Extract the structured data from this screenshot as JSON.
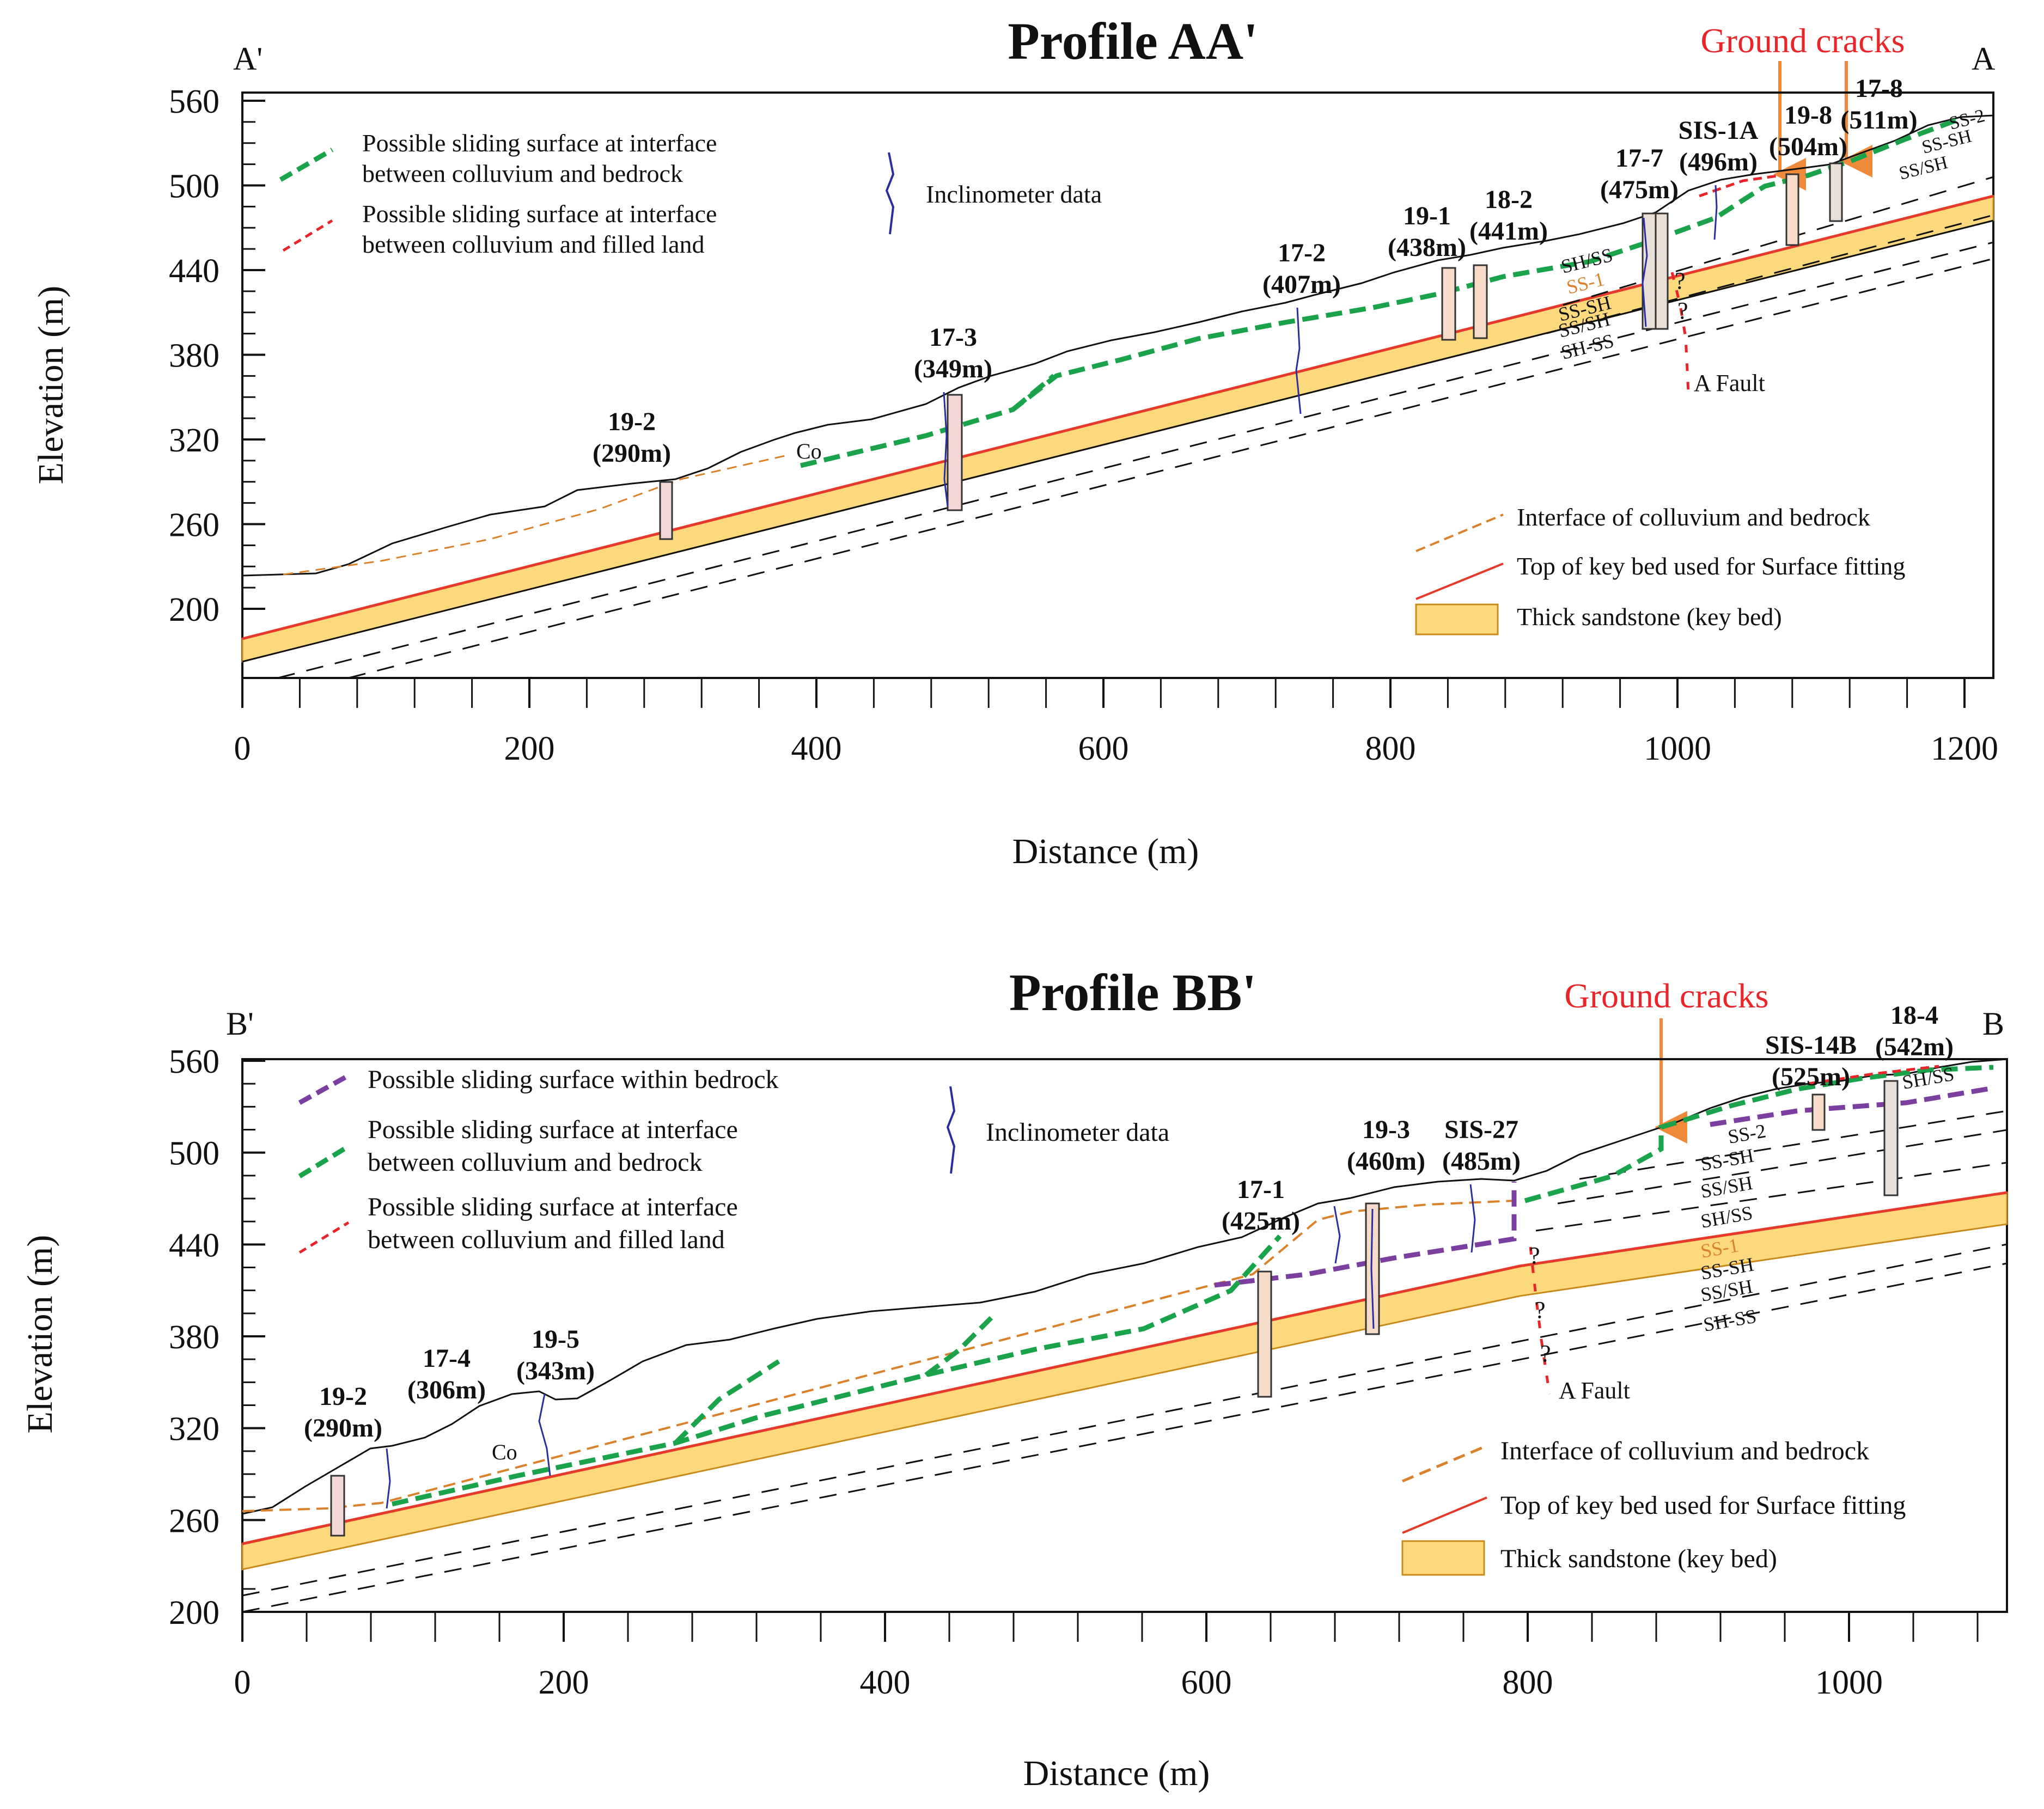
{
  "colors": {
    "green": "#1aa34a",
    "red_dash": "#e8262a",
    "orange_dash": "#d9822b",
    "purple": "#7b3fa0",
    "keybed_fill": "#fbd97c",
    "keybed_top": "#e53a2b",
    "inclinometer": "#2b2f9e",
    "crack_title": "#e8262a",
    "crack_arrow": "#f08a3a"
  },
  "profile_a": {
    "title": "Profile AA'",
    "left_end": "A'",
    "right_end": "A",
    "ground_cracks": "Ground cracks",
    "x_label": "Distance (m)",
    "y_label": "Elevation (m)",
    "x_ticks": [
      "0",
      "200",
      "400",
      "600",
      "800",
      "1000",
      "1200"
    ],
    "y_ticks": [
      "560",
      "500",
      "440",
      "380",
      "320",
      "260",
      "200"
    ],
    "legend_top": {
      "green": [
        "Possible sliding surface at interface",
        "between colluvium and bedrock"
      ],
      "red": [
        "Possible sliding surface at interface",
        "between colluvium and filled land"
      ],
      "incl": "Inclinometer data"
    },
    "legend_bottom": {
      "orange": "Interface of colluvium and bedrock",
      "red": "Top of key bed used for Surface fitting",
      "keybed": "Thick sandstone (key bed)"
    },
    "boreholes": [
      {
        "id": "19-2",
        "elev": "(290m)"
      },
      {
        "id": "17-3",
        "elev": "(349m)"
      },
      {
        "id": "17-2",
        "elev": "(407m)"
      },
      {
        "id": "19-1",
        "elev": "(438m)"
      },
      {
        "id": "18-2",
        "elev": "(441m)"
      },
      {
        "id": "17-7",
        "elev": "(475m)"
      },
      {
        "id": "SIS-1A",
        "elev": "(496m)"
      },
      {
        "id": "19-8",
        "elev": "(504m)"
      },
      {
        "id": "17-8",
        "elev": "(511m)"
      }
    ],
    "layers": [
      "SH/SS",
      "SS-1",
      "SS-SH",
      "SS/SH",
      "SH-SS",
      "SS-2",
      "SS-SH",
      "SS/SH"
    ],
    "co": "Co",
    "fault": "A Fault",
    "q": "?"
  },
  "profile_b": {
    "title": "Profile BB'",
    "left_end": "B'",
    "right_end": "B",
    "ground_cracks": "Ground cracks",
    "x_label": "Distance (m)",
    "y_label": "Elevation (m)",
    "x_ticks": [
      "0",
      "200",
      "400",
      "600",
      "800",
      "1000"
    ],
    "y_ticks": [
      "560",
      "500",
      "440",
      "380",
      "320",
      "260",
      "200"
    ],
    "legend_top": {
      "purple": "Possible sliding surface within bedrock",
      "green": [
        "Possible sliding surface at interface",
        "between colluvium and bedrock"
      ],
      "red": [
        "Possible sliding surface at interface",
        "between colluvium and filled land"
      ],
      "incl": "Inclinometer data"
    },
    "legend_bottom": {
      "orange": "Interface of colluvium and bedrock",
      "red": "Top of key bed used for Surface fitting",
      "keybed": "Thick sandstone (key bed)"
    },
    "boreholes": [
      {
        "id": "19-2",
        "elev": "(290m)"
      },
      {
        "id": "17-4",
        "elev": "(306m)"
      },
      {
        "id": "19-5",
        "elev": "(343m)"
      },
      {
        "id": "17-1",
        "elev": "(425m)"
      },
      {
        "id": "19-3",
        "elev": "(460m)"
      },
      {
        "id": "SIS-27",
        "elev": "(485m)"
      },
      {
        "id": "SIS-14B",
        "elev": "(525m)"
      },
      {
        "id": "18-4",
        "elev": "(542m)"
      }
    ],
    "layers": [
      "SS-2",
      "SS-SH",
      "SS/SH",
      "SH/SS",
      "SS-1",
      "SS-SH",
      "SS/SH",
      "SH-SS",
      "SH/SS"
    ],
    "co": "Co",
    "fault": "A Fault",
    "q": "?"
  }
}
